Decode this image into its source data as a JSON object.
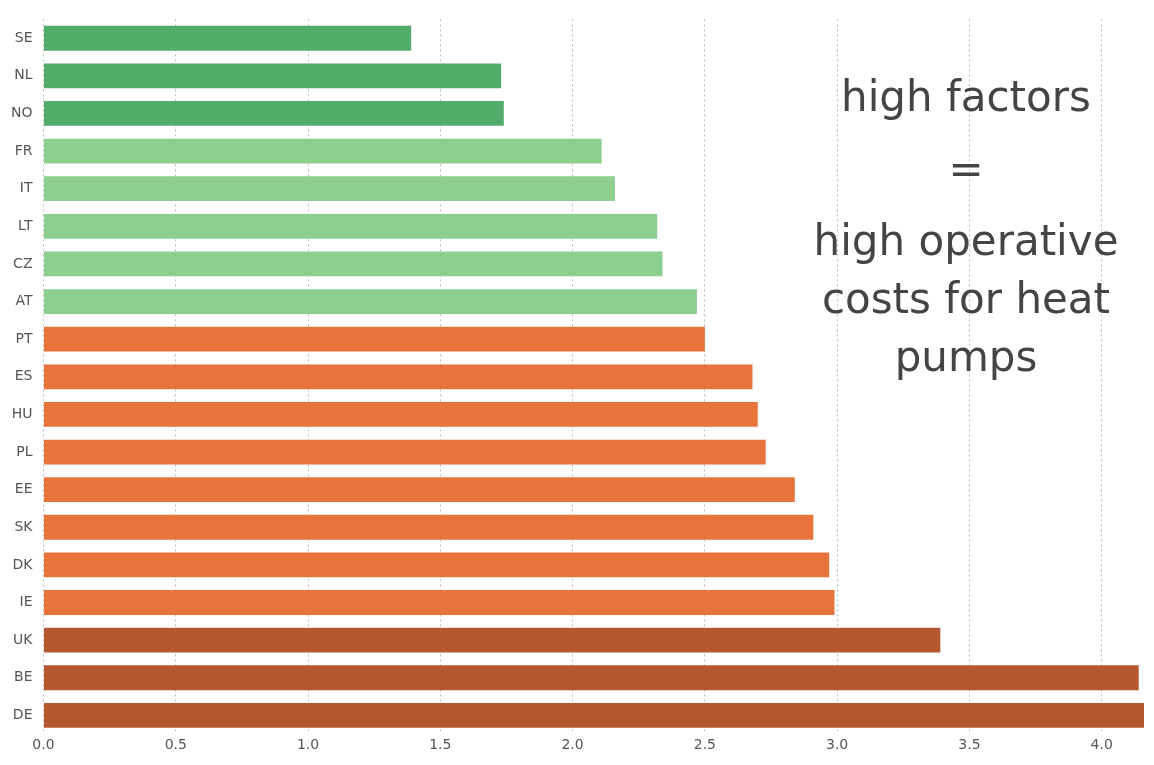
{
  "chart_data": {
    "type": "bar",
    "orientation": "horizontal",
    "categories": [
      "SE",
      "NL",
      "NO",
      "FR",
      "IT",
      "LT",
      "CZ",
      "AT",
      "PT",
      "ES",
      "HU",
      "PL",
      "EE",
      "SK",
      "DK",
      "IE",
      "UK",
      "BE",
      "DE"
    ],
    "values": [
      1.39,
      1.73,
      1.74,
      2.11,
      2.16,
      2.32,
      2.34,
      2.47,
      2.5,
      2.68,
      2.7,
      2.73,
      2.84,
      2.91,
      2.97,
      2.99,
      3.39,
      4.14,
      4.16
    ],
    "colors": [
      "#52ad6b",
      "#52ad6b",
      "#52ad6b",
      "#8ccf8f",
      "#8ccf8f",
      "#8ccf8f",
      "#8ccf8f",
      "#8ccf8f",
      "#e8743b",
      "#e8743b",
      "#e8743b",
      "#e8743b",
      "#e8743b",
      "#e8743b",
      "#e8743b",
      "#e8743b",
      "#b5572f",
      "#b5572f",
      "#b5572f"
    ],
    "xlim": [
      0,
      4.16
    ],
    "xticks": [
      {
        "value": 0,
        "label": "0.0"
      },
      {
        "value": 0.5,
        "label": "0.5"
      },
      {
        "value": 1,
        "label": "1.0"
      },
      {
        "value": 1.5,
        "label": "1.5"
      },
      {
        "value": 2,
        "label": "2.0"
      },
      {
        "value": 2.5,
        "label": "2.5"
      },
      {
        "value": 3,
        "label": "3.0"
      },
      {
        "value": 3.5,
        "label": "3.5"
      },
      {
        "value": 4,
        "label": "4.0"
      }
    ],
    "grid": "x",
    "legend": false,
    "annotations": [
      "high factors",
      "=",
      "high operative costs for heat pumps"
    ]
  }
}
